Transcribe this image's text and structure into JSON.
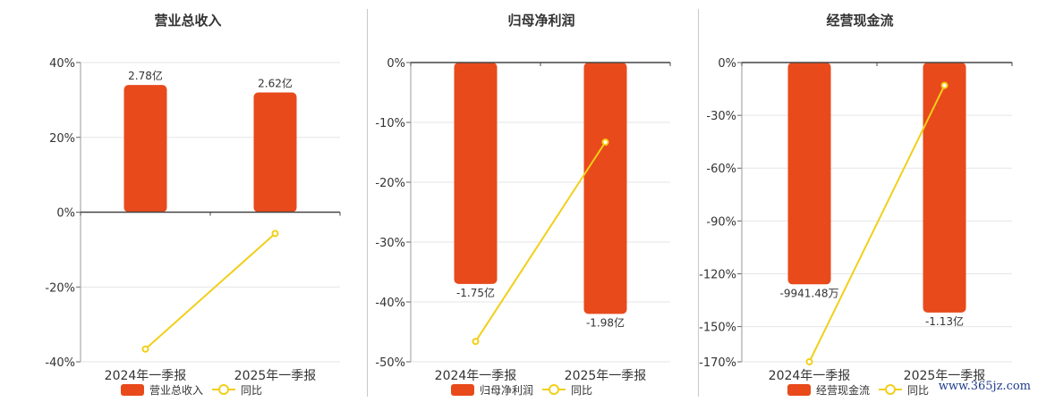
{
  "colors": {
    "bar": "#E84A1B",
    "line": "#F2CF1A",
    "axis": "#333333",
    "grid": "#E6E6E6"
  },
  "watermark": "www.365jz.com",
  "chart_data": [
    {
      "type": "bar",
      "title": "营业总收入",
      "categories": [
        "2024年一季报",
        "2025年一季报"
      ],
      "yticks": [
        "40%",
        "20%",
        "0%",
        "-20%",
        "-40%"
      ],
      "ylim": [
        -0.4,
        0.4
      ],
      "series": [
        {
          "name": "营业总收入",
          "kind": "bar",
          "values": [
            0.34,
            0.32
          ],
          "labels": [
            "2.78亿",
            "2.62亿"
          ]
        },
        {
          "name": "同比",
          "kind": "line",
          "values": [
            -0.366,
            -0.057
          ]
        }
      ],
      "legend_position": "bottom",
      "grid": true
    },
    {
      "type": "bar",
      "title": "归母净利润",
      "categories": [
        "2024年一季报",
        "2025年一季报"
      ],
      "yticks": [
        "0%",
        "-10%",
        "-20%",
        "-30%",
        "-40%",
        "-50%"
      ],
      "ylim": [
        -0.5,
        0
      ],
      "series": [
        {
          "name": "归母净利润",
          "kind": "bar",
          "values": [
            -0.37,
            -0.42
          ],
          "labels": [
            "-1.75亿",
            "-1.98亿"
          ]
        },
        {
          "name": "同比",
          "kind": "line",
          "values": [
            -0.466,
            -0.133
          ]
        }
      ],
      "legend_position": "bottom",
      "grid": true
    },
    {
      "type": "bar",
      "title": "经营现金流",
      "categories": [
        "2024年一季报",
        "2025年一季报"
      ],
      "yticks": [
        "0%",
        "-30%",
        "-60%",
        "-90%",
        "-120%",
        "-150%",
        "-170%"
      ],
      "ylim": [
        -1.7,
        0
      ],
      "series": [
        {
          "name": "经营现金流",
          "kind": "bar",
          "values": [
            -1.26,
            -1.42
          ],
          "labels": [
            "-9941.48万",
            "-1.13亿"
          ]
        },
        {
          "name": "同比",
          "kind": "line",
          "values": [
            -1.7,
            -0.13
          ]
        }
      ],
      "legend_position": "bottom",
      "grid": true
    }
  ]
}
